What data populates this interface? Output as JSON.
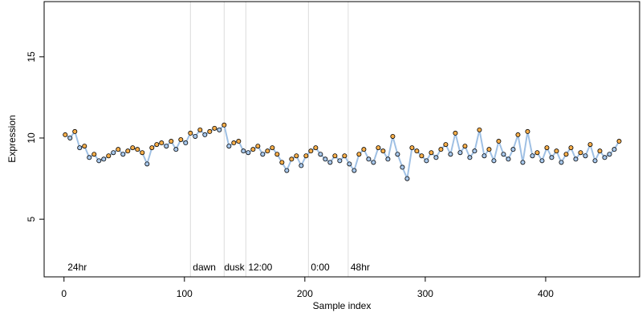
{
  "chart_data": {
    "type": "scatter",
    "xlabel": "Sample index",
    "ylabel": "Expression",
    "xlim": [
      -16.5,
      478
    ],
    "ylim": [
      1.45,
      18.4
    ],
    "xticks": [
      0,
      100,
      200,
      300,
      400
    ],
    "yticks": [
      5,
      10,
      15
    ],
    "vlines": [
      105,
      133,
      151,
      203,
      236
    ],
    "annotations": [
      {
        "text": "24hr",
        "x": 3,
        "y": 2.0
      },
      {
        "text": "dawn",
        "x": 107,
        "y": 2.0
      },
      {
        "text": "dusk",
        "x": 133,
        "y": 2.0
      },
      {
        "text": "12:00",
        "x": 153,
        "y": 2.0
      },
      {
        "text": "0:00",
        "x": 205,
        "y": 2.0
      },
      {
        "text": "48hr",
        "x": 238,
        "y": 2.0
      }
    ],
    "line_color": "#9fc0e4",
    "point_colors": [
      "#f7ae4a",
      "#a8c8ec"
    ],
    "series": [
      {
        "name": "Expression",
        "x": [
          1,
          5,
          9,
          13,
          17,
          21,
          25,
          29,
          33,
          37,
          41,
          45,
          49,
          53,
          57,
          61,
          65,
          69,
          73,
          77,
          81,
          85,
          89,
          93,
          97,
          101,
          105,
          109,
          113,
          117,
          121,
          125,
          129,
          133,
          137,
          141,
          145,
          149,
          153,
          157,
          161,
          165,
          169,
          173,
          177,
          181,
          185,
          189,
          193,
          197,
          201,
          205,
          209,
          213,
          217,
          221,
          225,
          229,
          233,
          237,
          241,
          245,
          249,
          253,
          257,
          261,
          265,
          269,
          273,
          277,
          281,
          285,
          289,
          293,
          297,
          301,
          305,
          309,
          313,
          317,
          321,
          325,
          329,
          333,
          337,
          341,
          345,
          349,
          353,
          357,
          361,
          365,
          369,
          373,
          377,
          381,
          385,
          389,
          393,
          397,
          401,
          405,
          409,
          413,
          417,
          421,
          425,
          429,
          433,
          437,
          441,
          445,
          449,
          453,
          457,
          461
        ],
        "values": [
          10.2,
          10.0,
          10.4,
          9.4,
          9.5,
          8.8,
          9.0,
          8.6,
          8.7,
          8.9,
          9.1,
          9.3,
          9.0,
          9.2,
          9.4,
          9.3,
          9.1,
          8.4,
          9.4,
          9.6,
          9.7,
          9.5,
          9.8,
          9.3,
          9.9,
          9.7,
          10.3,
          10.1,
          10.5,
          10.2,
          10.4,
          10.6,
          10.5,
          10.8,
          9.5,
          9.7,
          9.8,
          9.2,
          9.1,
          9.3,
          9.5,
          9.0,
          9.2,
          9.4,
          9.0,
          8.5,
          8.0,
          8.7,
          8.9,
          8.3,
          8.9,
          9.2,
          9.4,
          9.0,
          8.7,
          8.5,
          8.9,
          8.6,
          8.9,
          8.4,
          8.0,
          9.0,
          9.3,
          8.7,
          8.5,
          9.4,
          9.2,
          8.7,
          10.1,
          9.0,
          8.2,
          7.5,
          9.4,
          9.2,
          8.9,
          8.6,
          9.1,
          8.8,
          9.3,
          9.6,
          9.0,
          10.3,
          9.1,
          9.5,
          8.8,
          9.2,
          10.5,
          8.9,
          9.3,
          8.6,
          9.8,
          9.0,
          8.7,
          9.3,
          10.2,
          8.5,
          10.4,
          8.9,
          9.1,
          8.6,
          9.4,
          8.8,
          9.2,
          8.5,
          9.0,
          9.4,
          8.7,
          9.1,
          8.9,
          9.6,
          8.6,
          9.2,
          8.8,
          9.0,
          9.3,
          9.8
        ]
      }
    ]
  }
}
